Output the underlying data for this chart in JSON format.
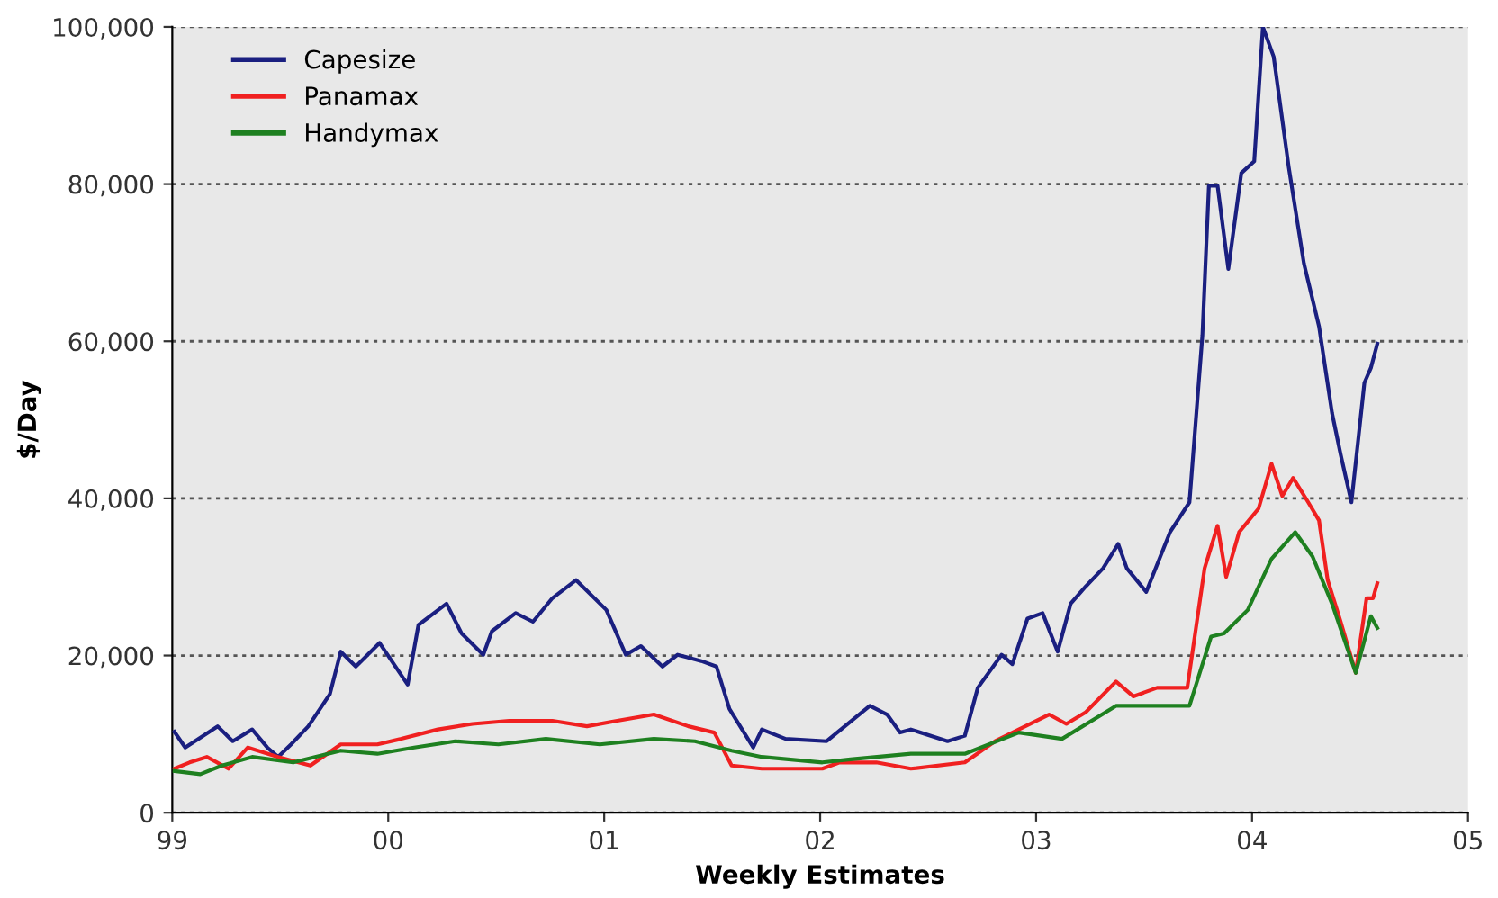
{
  "chart_data": {
    "type": "line",
    "xlabel": "Weekly Estimates",
    "ylabel": "$/Day",
    "xlim": [
      1999,
      2005
    ],
    "xticks": [
      {
        "value": 1999,
        "label": "99"
      },
      {
        "value": 2000,
        "label": "00"
      },
      {
        "value": 2001,
        "label": "01"
      },
      {
        "value": 2002,
        "label": "02"
      },
      {
        "value": 2003,
        "label": "03"
      },
      {
        "value": 2004,
        "label": "04"
      },
      {
        "value": 2005,
        "label": "05"
      }
    ],
    "ylim": [
      0,
      100000
    ],
    "yticks": [
      0,
      {
        "value": 20000,
        "label": "20,000"
      },
      {
        "value": 40000,
        "label": "40,000"
      },
      {
        "value": 60000,
        "label": "60,000"
      },
      {
        "value": 80000,
        "label": "80,000"
      },
      {
        "value": 100000,
        "label": "100,000"
      }
    ],
    "grid": "y",
    "legend": "top left",
    "marker": "none",
    "line_style": "solid",
    "series": [
      {
        "name": "Capesize",
        "color": "#1a1f80",
        "x": [
          1999.01,
          1999.06,
          1999.21,
          1999.28,
          1999.37,
          1999.44,
          1999.49,
          1999.55,
          1999.63,
          1999.73,
          1999.78,
          1999.85,
          1999.96,
          2000.09,
          2000.14,
          2000.27,
          2000.34,
          2000.44,
          2000.48,
          2000.59,
          2000.67,
          2000.76,
          2000.87,
          2001.01,
          2001.1,
          2001.17,
          2001.27,
          2001.34,
          2001.45,
          2001.52,
          2001.58,
          2001.69,
          2001.73,
          2001.84,
          2002.03,
          2002.23,
          2002.31,
          2002.37,
          2002.42,
          2002.59,
          2002.67,
          2002.73,
          2002.84,
          2002.89,
          2002.96,
          2003.03,
          2003.1,
          2003.16,
          2003.23,
          2003.31,
          2003.38,
          2003.42,
          2003.51,
          2003.62,
          2003.71,
          2003.77,
          2003.8,
          2003.84,
          2003.89,
          2003.95,
          2004.01,
          2004.05,
          2004.1,
          2004.17,
          2004.24,
          2004.31,
          2004.37,
          2004.41,
          2004.46,
          2004.52,
          2004.55,
          2004.58
        ],
        "values": [
          10300,
          8300,
          11000,
          9100,
          10600,
          8300,
          7100,
          8700,
          11000,
          15100,
          20500,
          18600,
          21600,
          16300,
          23900,
          26600,
          22800,
          20100,
          23100,
          25400,
          24300,
          27300,
          29600,
          25800,
          20100,
          21200,
          18600,
          20100,
          19300,
          18600,
          13200,
          8300,
          10600,
          9400,
          9100,
          13600,
          12500,
          10200,
          10600,
          9100,
          9800,
          15900,
          20100,
          18900,
          24700,
          25400,
          20500,
          26600,
          28800,
          31100,
          34200,
          31100,
          28100,
          35700,
          39500,
          60800,
          79800,
          79800,
          69200,
          81400,
          82900,
          100000,
          96200,
          82100,
          69900,
          61900,
          50900,
          45600,
          39500,
          54700,
          56600,
          59700
        ]
      },
      {
        "name": "Panamax",
        "color": "#f02020",
        "x": [
          1999.01,
          1999.08,
          1999.16,
          1999.26,
          1999.35,
          1999.49,
          1999.64,
          1999.78,
          1999.95,
          2000.06,
          2000.23,
          2000.39,
          2000.56,
          2000.76,
          2000.92,
          2001.06,
          2001.23,
          2001.39,
          2001.51,
          2001.59,
          2001.73,
          2002.01,
          2002.09,
          2002.26,
          2002.42,
          2002.67,
          2002.81,
          2002.92,
          2003.06,
          2003.14,
          2003.23,
          2003.37,
          2003.45,
          2003.56,
          2003.7,
          2003.78,
          2003.84,
          2003.88,
          2003.94,
          2004.03,
          2004.09,
          2004.14,
          2004.19,
          2004.26,
          2004.31,
          2004.35,
          2004.41,
          2004.48,
          2004.53,
          2004.56,
          2004.58
        ],
        "values": [
          5600,
          6400,
          7100,
          5600,
          8300,
          7100,
          6000,
          8700,
          8700,
          9400,
          10600,
          11300,
          11700,
          11700,
          11000,
          11700,
          12500,
          11000,
          10200,
          6000,
          5600,
          5600,
          6400,
          6400,
          5600,
          6400,
          9100,
          10600,
          12500,
          11300,
          12800,
          16700,
          14800,
          15900,
          15900,
          31100,
          36500,
          30000,
          35700,
          38700,
          44400,
          40300,
          42600,
          39500,
          37200,
          29600,
          24300,
          17800,
          27300,
          27300,
          29200
        ]
      },
      {
        "name": "Handymax",
        "color": "#1e8020",
        "x": [
          1999.01,
          1999.13,
          1999.23,
          1999.37,
          1999.56,
          1999.78,
          1999.95,
          2000.12,
          2000.31,
          2000.51,
          2000.73,
          2000.98,
          2001.23,
          2001.42,
          2001.59,
          2001.73,
          2002.01,
          2002.14,
          2002.42,
          2002.67,
          2002.92,
          2003.12,
          2003.37,
          2003.53,
          2003.71,
          2003.81,
          2003.87,
          2003.98,
          2004.09,
          2004.2,
          2004.28,
          2004.37,
          2004.48,
          2004.55,
          2004.58
        ],
        "values": [
          5300,
          4900,
          6000,
          7100,
          6400,
          7900,
          7500,
          8300,
          9100,
          8700,
          9400,
          8700,
          9400,
          9100,
          7900,
          7100,
          6400,
          6800,
          7500,
          7500,
          10200,
          9400,
          13600,
          13600,
          13600,
          22400,
          22800,
          25800,
          32300,
          35700,
          32600,
          26600,
          17800,
          25000,
          23500
        ]
      }
    ]
  }
}
